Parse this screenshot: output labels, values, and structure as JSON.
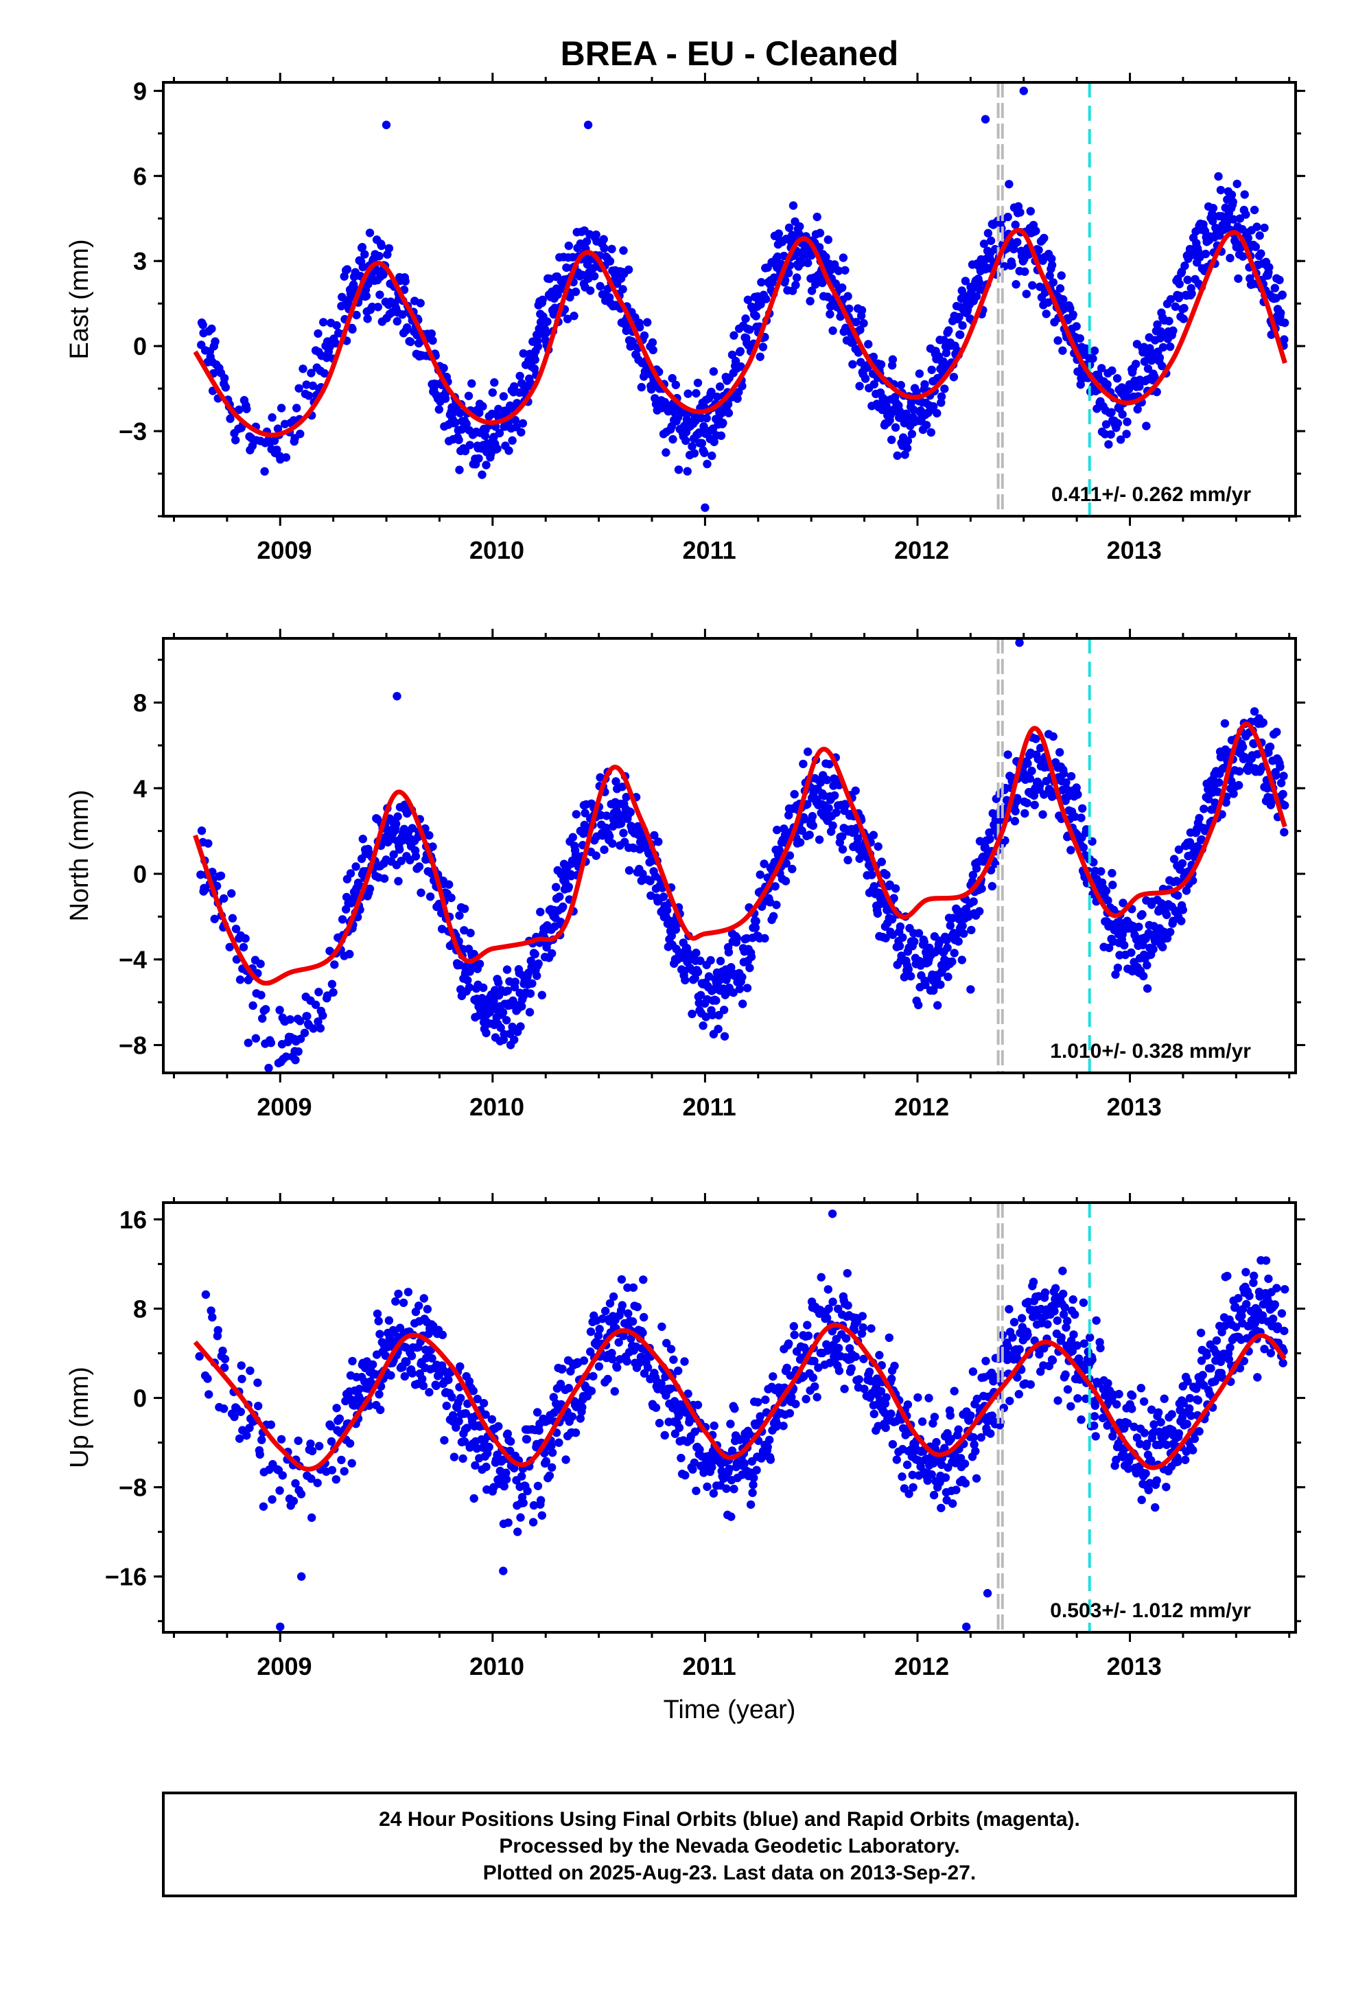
{
  "title": "BREA  - EU - Cleaned",
  "xlabel": "Time (year)",
  "footer": [
    "24 Hour Positions Using Final Orbits (blue) and Rapid Orbits (magenta).",
    "Processed by the Nevada Geodetic Laboratory.",
    "Plotted on 2025-Aug-23. Last data on 2013-Sep-27."
  ],
  "colors": {
    "points": "#0000ee",
    "fit": "#ee0000",
    "equipment_change": "#bbbbbb",
    "earthquake": "#22dddd",
    "axes": "#000000"
  },
  "chart_data": [
    {
      "type": "scatter",
      "component": "east",
      "ylabel": "East (mm)",
      "rate_text": "0.411+/- 0.262 mm/yr",
      "xlim": [
        2008.45,
        2013.78
      ],
      "ylim": [
        -6.0,
        9.3
      ],
      "x_ticks": [
        2009,
        2010,
        2011,
        2012,
        2013
      ],
      "y_ticks": [
        -3,
        0,
        3,
        6,
        9
      ],
      "grid": false,
      "equipment_change_years": [
        2012.38,
        2012.4
      ],
      "earthquake_years": [
        2012.81
      ],
      "fit_curve": {
        "x": [
          2008.6,
          2008.8,
          2009.0,
          2009.2,
          2009.43,
          2009.6,
          2009.8,
          2010.0,
          2010.2,
          2010.42,
          2010.6,
          2010.8,
          2011.0,
          2011.2,
          2011.44,
          2011.6,
          2011.8,
          2012.0,
          2012.2,
          2012.45,
          2012.6,
          2012.8,
          2013.0,
          2013.2,
          2013.46,
          2013.6,
          2013.73
        ],
        "y": [
          -0.2,
          -2.5,
          -3.1,
          -1.6,
          2.8,
          1.4,
          -1.6,
          -2.7,
          -1.4,
          3.2,
          1.6,
          -1.4,
          -2.3,
          -0.7,
          3.7,
          2.0,
          -0.8,
          -1.8,
          -0.3,
          4.0,
          2.3,
          -0.9,
          -2.0,
          -0.5,
          3.9,
          2.4,
          -0.6
        ]
      },
      "seasonal": {
        "offset": 0.25,
        "trend": 0.411,
        "amplitude": 3.05,
        "peak_year_fraction": 0.45,
        "scatter": 1.0
      },
      "data_span": [
        2008.62,
        2013.73
      ],
      "outliers": {
        "x": [
          2009.5,
          2010.45,
          2012.32,
          2012.5,
          2011.0
        ],
        "y": [
          7.8,
          7.8,
          8.0,
          9.0,
          -5.7
        ]
      }
    },
    {
      "type": "scatter",
      "component": "north",
      "ylabel": "North (mm)",
      "rate_text": "1.010+/- 0.328 mm/yr",
      "xlim": [
        2008.45,
        2013.78
      ],
      "ylim": [
        -9.3,
        11.0
      ],
      "x_ticks": [
        2009,
        2010,
        2011,
        2012,
        2013
      ],
      "y_ticks": [
        -8,
        -4,
        0,
        4,
        8
      ],
      "grid": false,
      "equipment_change_years": [
        2012.38,
        2012.4
      ],
      "earthquake_years": [
        2012.81
      ],
      "fit_curve": {
        "x": [
          2008.6,
          2008.75,
          2008.9,
          2009.05,
          2009.25,
          2009.4,
          2009.55,
          2009.7,
          2009.85,
          2010.0,
          2010.2,
          2010.35,
          2010.55,
          2010.7,
          2010.9,
          2011.0,
          2011.2,
          2011.4,
          2011.55,
          2011.7,
          2011.9,
          2012.05,
          2012.25,
          2012.4,
          2012.55,
          2012.7,
          2012.9,
          2013.05,
          2013.25,
          2013.4,
          2013.55,
          2013.73
        ],
        "y": [
          1.8,
          -2.5,
          -5.0,
          -4.6,
          -3.8,
          -0.5,
          3.8,
          1.0,
          -3.8,
          -3.5,
          -3.1,
          -2.2,
          4.8,
          2.5,
          -2.5,
          -2.8,
          -2.0,
          1.5,
          5.8,
          3.0,
          -1.8,
          -1.2,
          -0.8,
          2.0,
          6.8,
          2.5,
          -1.8,
          -1.0,
          -0.5,
          2.5,
          7.0,
          2.2
        ]
      },
      "seasonal": {
        "offset": -0.9,
        "trend": 1.01,
        "amplitude": 4.4,
        "peak_year_fraction": 0.55,
        "scatter": 1.3
      },
      "data_span": [
        2008.62,
        2013.73
      ],
      "outliers": {
        "x": [
          2009.55,
          2012.48,
          2012.25,
          2009.0,
          2008.85
        ],
        "y": [
          8.3,
          10.8,
          -5.4,
          -8.8,
          -7.9
        ]
      }
    },
    {
      "type": "scatter",
      "component": "up",
      "ylabel": "Up (mm)",
      "rate_text": "0.503+/- 1.012 mm/yr",
      "xlim": [
        2008.45,
        2013.78
      ],
      "ylim": [
        -21.0,
        17.5
      ],
      "x_ticks": [
        2009,
        2010,
        2011,
        2012,
        2013
      ],
      "y_ticks": [
        -16,
        -8,
        0,
        8,
        16
      ],
      "grid": false,
      "equipment_change_years": [
        2012.38,
        2012.4
      ],
      "earthquake_years": [
        2012.81
      ],
      "fit_curve": {
        "x": [
          2008.6,
          2008.8,
          2009.0,
          2009.17,
          2009.4,
          2009.6,
          2009.8,
          2010.0,
          2010.17,
          2010.4,
          2010.6,
          2010.8,
          2011.0,
          2011.15,
          2011.4,
          2011.6,
          2011.8,
          2012.0,
          2012.15,
          2012.4,
          2012.6,
          2012.8,
          2013.0,
          2013.15,
          2013.4,
          2013.6,
          2013.73
        ],
        "y": [
          5.0,
          0.5,
          -4.5,
          -6.2,
          -0.5,
          5.5,
          3.0,
          -3.5,
          -5.8,
          1.0,
          6.0,
          3.0,
          -3.0,
          -5.2,
          1.0,
          6.5,
          3.0,
          -3.5,
          -4.8,
          1.0,
          5.0,
          1.5,
          -4.5,
          -6.0,
          0.0,
          5.5,
          3.5
        ]
      },
      "seasonal": {
        "offset": -0.2,
        "trend": 0.503,
        "amplitude": 6.0,
        "peak_year_fraction": 0.6,
        "scatter": 3.2
      },
      "data_span": [
        2008.62,
        2013.73
      ],
      "outliers": {
        "x": [
          2009.0,
          2009.1,
          2010.05,
          2011.6,
          2012.23,
          2012.33
        ],
        "y": [
          -20.5,
          -16.0,
          -15.5,
          16.5,
          -20.5,
          -17.5
        ]
      }
    }
  ]
}
